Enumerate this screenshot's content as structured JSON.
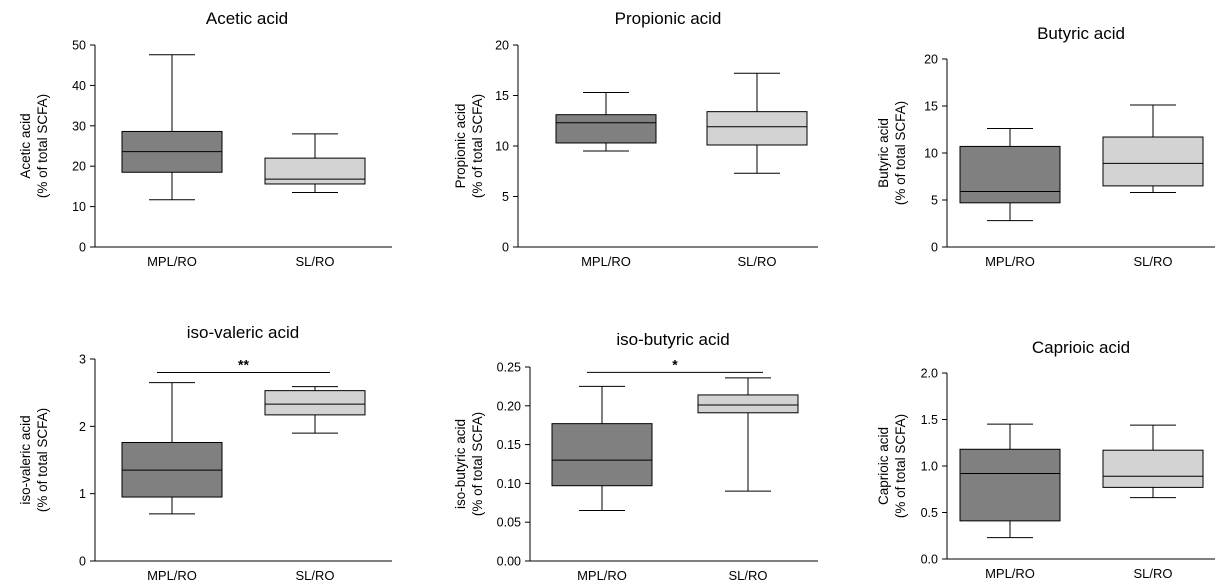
{
  "chart_data": [
    {
      "type": "box",
      "title": "Acetic acid",
      "ylabel": [
        "Acetic acid",
        "(% of total SCFA)"
      ],
      "ylim": [
        0,
        50
      ],
      "yticks": [
        "0",
        "10",
        "20",
        "30",
        "40",
        "50"
      ],
      "categories": [
        "MPL/RO",
        "SL/RO"
      ],
      "boxes": [
        {
          "min": 11.7,
          "q1": 18.5,
          "median": 23.6,
          "q3": 28.6,
          "max": 47.6,
          "color": "#808080"
        },
        {
          "min": 13.5,
          "q1": 15.6,
          "median": 16.8,
          "q3": 22.0,
          "max": 28.0,
          "color": "#d3d3d3"
        }
      ],
      "significance": null
    },
    {
      "type": "box",
      "title": "Propionic acid",
      "ylabel": [
        "Propionic acid",
        "(% of total SCFA)"
      ],
      "ylim": [
        0,
        20
      ],
      "yticks": [
        "0",
        "5",
        "10",
        "15",
        "20"
      ],
      "categories": [
        "MPL/RO",
        "SL/RO"
      ],
      "boxes": [
        {
          "min": 9.5,
          "q1": 10.3,
          "median": 12.3,
          "q3": 13.1,
          "max": 15.3,
          "color": "#808080"
        },
        {
          "min": 7.3,
          "q1": 10.1,
          "median": 11.9,
          "q3": 13.4,
          "max": 17.2,
          "color": "#d3d3d3"
        }
      ],
      "significance": null
    },
    {
      "type": "box",
      "title": "Butyric acid",
      "ylabel": [
        "Butyric acid",
        "(% of total SCFA)"
      ],
      "ylim": [
        0,
        20
      ],
      "yticks": [
        "0",
        "5",
        "10",
        "15",
        "20"
      ],
      "categories": [
        "MPL/RO",
        "SL/RO"
      ],
      "boxes": [
        {
          "min": 2.8,
          "q1": 4.7,
          "median": 5.9,
          "q3": 10.7,
          "max": 12.6,
          "color": "#808080"
        },
        {
          "min": 5.8,
          "q1": 6.5,
          "median": 8.9,
          "q3": 11.7,
          "max": 15.1,
          "color": "#d3d3d3"
        }
      ],
      "significance": null
    },
    {
      "type": "box",
      "title": "iso-valeric acid",
      "ylabel": [
        "iso-valeric acid",
        "(% of total SCFA)"
      ],
      "ylim": [
        0,
        3
      ],
      "yticks": [
        "0",
        "1",
        "2",
        "3"
      ],
      "categories": [
        "MPL/RO",
        "SL/RO"
      ],
      "boxes": [
        {
          "min": 0.7,
          "q1": 0.95,
          "median": 1.35,
          "q3": 1.76,
          "max": 2.65,
          "color": "#808080"
        },
        {
          "min": 1.9,
          "q1": 2.17,
          "median": 2.33,
          "q3": 2.53,
          "max": 2.59,
          "color": "#d3d3d3"
        }
      ],
      "significance": {
        "label": "**",
        "y": 2.8
      }
    },
    {
      "type": "box",
      "title": "iso-butyric acid",
      "ylabel": [
        "iso-butyric acid",
        "(% of total SCFA)"
      ],
      "ylim": [
        0,
        0.25
      ],
      "yticks": [
        "0.00",
        "0.05",
        "0.10",
        "0.15",
        "0.20",
        "0.25"
      ],
      "categories": [
        "MPL/RO",
        "SL/RO"
      ],
      "boxes": [
        {
          "min": 0.065,
          "q1": 0.097,
          "median": 0.13,
          "q3": 0.177,
          "max": 0.225,
          "color": "#808080"
        },
        {
          "min": 0.09,
          "q1": 0.191,
          "median": 0.201,
          "q3": 0.214,
          "max": 0.236,
          "color": "#d3d3d3"
        }
      ],
      "significance": {
        "label": "*",
        "y": 0.243
      }
    },
    {
      "type": "box",
      "title": "Caprioic acid",
      "ylabel": [
        "Caprioic acid",
        "(% of total SCFA)"
      ],
      "ylim": [
        0,
        2
      ],
      "yticks": [
        "0.0",
        "0.5",
        "1.0",
        "1.5",
        "2.0"
      ],
      "categories": [
        "MPL/RO",
        "SL/RO"
      ],
      "boxes": [
        {
          "min": 0.23,
          "q1": 0.41,
          "median": 0.92,
          "q3": 1.18,
          "max": 1.45,
          "color": "#808080"
        },
        {
          "min": 0.66,
          "q1": 0.77,
          "median": 0.89,
          "q3": 1.17,
          "max": 1.44,
          "color": "#d3d3d3"
        }
      ],
      "significance": null
    }
  ]
}
